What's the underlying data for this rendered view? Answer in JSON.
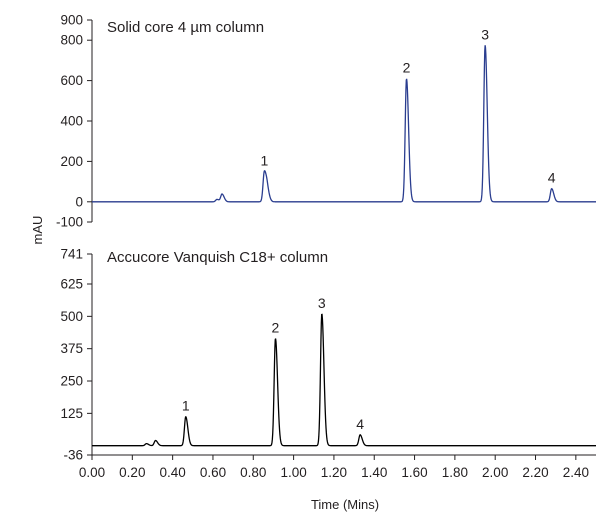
{
  "chart_data": {
    "type": "line",
    "xlabel": "Time (Mins)",
    "ylabel": "mAU",
    "xlim": [
      0.0,
      2.5
    ],
    "x_ticks": [
      "0.00",
      "0.20",
      "0.40",
      "0.60",
      "0.80",
      "1.00",
      "1.20",
      "1.40",
      "1.60",
      "1.80",
      "2.00",
      "2.20",
      "2.40"
    ],
    "grid": false,
    "panels": [
      {
        "title": "Solid core 4 µm column",
        "line_color": "#2a3d8f",
        "ylim": [
          -100,
          900
        ],
        "y_ticks": [
          "900",
          "800",
          "600",
          "400",
          "200",
          "0",
          "-100"
        ],
        "baseline": 0,
        "peaks": [
          {
            "label": "",
            "x": 0.62,
            "y": 12
          },
          {
            "label": "",
            "x": 0.645,
            "y": 38
          },
          {
            "label": "1",
            "x": 0.855,
            "y": 150
          },
          {
            "label": "",
            "x": 0.87,
            "y": 45
          },
          {
            "label": "2",
            "x": 1.56,
            "y": 610
          },
          {
            "label": "3",
            "x": 1.95,
            "y": 775
          },
          {
            "label": "4",
            "x": 2.28,
            "y": 65
          }
        ]
      },
      {
        "title": "Accucore Vanquish C18+ column",
        "line_color": "#000000",
        "ylim": [
          -36,
          741
        ],
        "y_ticks": [
          "741",
          "625",
          "500",
          "375",
          "250",
          "125",
          "-36"
        ],
        "baseline": 0,
        "peaks": [
          {
            "label": "",
            "x": 0.27,
            "y": 8
          },
          {
            "label": "",
            "x": 0.315,
            "y": 20
          },
          {
            "label": "1",
            "x": 0.465,
            "y": 112
          },
          {
            "label": "2",
            "x": 0.91,
            "y": 415
          },
          {
            "label": "3",
            "x": 1.14,
            "y": 510
          },
          {
            "label": "4",
            "x": 1.33,
            "y": 42
          }
        ]
      }
    ]
  }
}
